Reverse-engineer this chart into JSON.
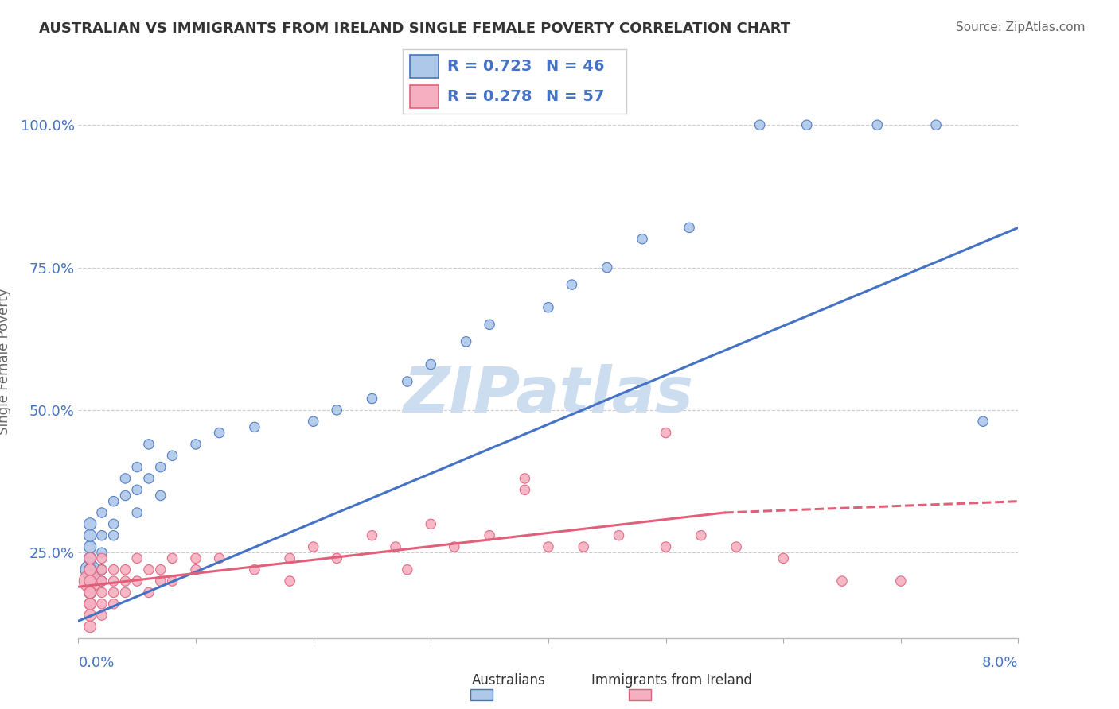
{
  "title": "AUSTRALIAN VS IMMIGRANTS FROM IRELAND SINGLE FEMALE POVERTY CORRELATION CHART",
  "source": "Source: ZipAtlas.com",
  "ylabel": "Single Female Poverty",
  "ytick_labels": [
    "25.0%",
    "50.0%",
    "75.0%",
    "100.0%"
  ],
  "ytick_values": [
    0.25,
    0.5,
    0.75,
    1.0
  ],
  "xlim": [
    0.0,
    0.08
  ],
  "ylim": [
    0.1,
    1.07
  ],
  "legend_r1": "R = 0.723",
  "legend_n1": "N = 46",
  "legend_r2": "R = 0.278",
  "legend_n2": "N = 57",
  "color_aus": "#adc8e8",
  "color_ire": "#f5afc0",
  "color_line_aus": "#4472c4",
  "color_line_ire": "#e0607a",
  "watermark_color": "#ccddef",
  "aus_x": [
    0.001,
    0.001,
    0.001,
    0.001,
    0.001,
    0.001,
    0.001,
    0.001,
    0.002,
    0.002,
    0.002,
    0.002,
    0.002,
    0.003,
    0.003,
    0.003,
    0.004,
    0.004,
    0.005,
    0.005,
    0.005,
    0.006,
    0.006,
    0.007,
    0.007,
    0.008,
    0.01,
    0.012,
    0.015,
    0.02,
    0.022,
    0.025,
    0.028,
    0.03,
    0.033,
    0.035,
    0.04,
    0.042,
    0.045,
    0.048,
    0.052,
    0.058,
    0.062,
    0.068,
    0.073,
    0.077
  ],
  "aus_y": [
    0.22,
    0.24,
    0.2,
    0.26,
    0.18,
    0.28,
    0.22,
    0.3,
    0.25,
    0.28,
    0.22,
    0.32,
    0.2,
    0.3,
    0.34,
    0.28,
    0.35,
    0.38,
    0.32,
    0.36,
    0.4,
    0.38,
    0.44,
    0.4,
    0.35,
    0.42,
    0.44,
    0.46,
    0.47,
    0.48,
    0.5,
    0.52,
    0.55,
    0.58,
    0.62,
    0.65,
    0.68,
    0.72,
    0.75,
    0.8,
    0.82,
    1.0,
    1.0,
    1.0,
    1.0,
    0.48
  ],
  "ire_x": [
    0.001,
    0.001,
    0.001,
    0.001,
    0.001,
    0.001,
    0.001,
    0.001,
    0.001,
    0.001,
    0.002,
    0.002,
    0.002,
    0.002,
    0.002,
    0.002,
    0.003,
    0.003,
    0.003,
    0.003,
    0.004,
    0.004,
    0.004,
    0.005,
    0.005,
    0.006,
    0.006,
    0.007,
    0.007,
    0.008,
    0.008,
    0.01,
    0.01,
    0.012,
    0.015,
    0.018,
    0.02,
    0.022,
    0.025,
    0.028,
    0.03,
    0.032,
    0.035,
    0.038,
    0.04,
    0.043,
    0.046,
    0.05,
    0.053,
    0.056,
    0.06,
    0.065,
    0.07,
    0.05,
    0.038,
    0.027,
    0.018
  ],
  "ire_y": [
    0.2,
    0.18,
    0.22,
    0.16,
    0.24,
    0.14,
    0.2,
    0.16,
    0.12,
    0.18,
    0.22,
    0.18,
    0.2,
    0.16,
    0.24,
    0.14,
    0.22,
    0.18,
    0.2,
    0.16,
    0.22,
    0.18,
    0.2,
    0.24,
    0.2,
    0.22,
    0.18,
    0.22,
    0.2,
    0.24,
    0.2,
    0.24,
    0.22,
    0.24,
    0.22,
    0.24,
    0.26,
    0.24,
    0.28,
    0.22,
    0.3,
    0.26,
    0.28,
    0.38,
    0.26,
    0.26,
    0.28,
    0.26,
    0.28,
    0.26,
    0.24,
    0.2,
    0.2,
    0.46,
    0.36,
    0.26,
    0.2
  ]
}
